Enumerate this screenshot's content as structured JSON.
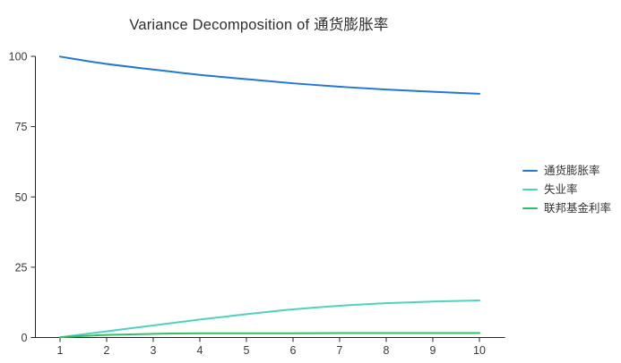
{
  "title": "Variance Decomposition of 通货膨胀率",
  "chart_data": {
    "type": "line",
    "title": "Variance Decomposition of 通货膨胀率",
    "xlabel": "",
    "ylabel": "",
    "x": [
      1,
      2,
      3,
      4,
      5,
      6,
      7,
      8,
      9,
      10
    ],
    "x_ticks": [
      "1",
      "2",
      "3",
      "4",
      "5",
      "6",
      "7",
      "8",
      "9",
      "10"
    ],
    "y_ticks": [
      "0",
      "25",
      "50",
      "75",
      "100"
    ],
    "y_tick_values": [
      0,
      25,
      50,
      75,
      100
    ],
    "xlim": [
      1,
      10.55
    ],
    "ylim": [
      0,
      100
    ],
    "grid": false,
    "legend_position": "right",
    "axis_color": "#262626",
    "tick_label_color": "#3a3a3a",
    "series": [
      {
        "id": "inflation",
        "name": "通货膨胀率",
        "color": "#2278D4",
        "values": [
          99.9,
          97.3,
          95.3,
          93.4,
          91.9,
          90.4,
          89.2,
          88.2,
          87.4,
          86.7
        ]
      },
      {
        "id": "unemployment",
        "name": "失业率",
        "color": "#4FD2BE",
        "values": [
          0.1,
          2.2,
          4.3,
          6.4,
          8.3,
          10.0,
          11.3,
          12.2,
          12.8,
          13.2
        ]
      },
      {
        "id": "fed-funds-rate",
        "name": "联邦基金利率",
        "color": "#31BF62",
        "values": [
          0.1,
          0.9,
          1.3,
          1.5,
          1.5,
          1.5,
          1.6,
          1.6,
          1.6,
          1.6
        ]
      }
    ]
  }
}
